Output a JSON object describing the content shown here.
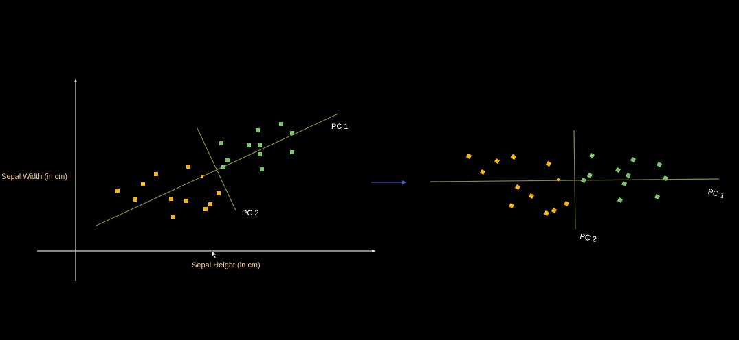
{
  "left_plot": {
    "y_axis_label": "Sepal Width (in cm)",
    "x_axis_label": "Sepal Height (in cm)",
    "pc1_label": "PC 1",
    "pc2_label": "PC 2"
  },
  "right_plot": {
    "pc1_label": "PC 1",
    "pc2_label": "PC 2"
  },
  "colors": {
    "background": "#000000",
    "class_a": "#f5b30f",
    "class_b": "#7bc46a",
    "axis": "#d8d8d8",
    "pc_line": "#8a8a3a",
    "arrow": "#3a5fc8",
    "axis_label": "#f2c88a"
  },
  "arrow_icon": "right-arrow-icon",
  "cursor_icon": "mouse-pointer-icon"
}
